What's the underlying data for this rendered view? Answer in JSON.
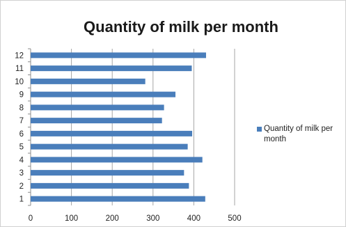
{
  "chart_data": {
    "type": "bar",
    "orientation": "horizontal",
    "title": "Quantity of milk per month",
    "categories": [
      "1",
      "2",
      "3",
      "4",
      "5",
      "6",
      "7",
      "8",
      "9",
      "10",
      "11",
      "12"
    ],
    "series": [
      {
        "name": "Quantity of milk per month",
        "color": "#4a7ebb",
        "values": [
          428,
          388,
          376,
          421,
          385,
          396,
          322,
          327,
          355,
          281,
          395,
          430
        ]
      }
    ],
    "xlim": [
      0,
      500
    ],
    "x_ticks": [
      "0",
      "100",
      "200",
      "300",
      "400",
      "500"
    ],
    "gridlines": "vertical",
    "legend_position": "right"
  }
}
